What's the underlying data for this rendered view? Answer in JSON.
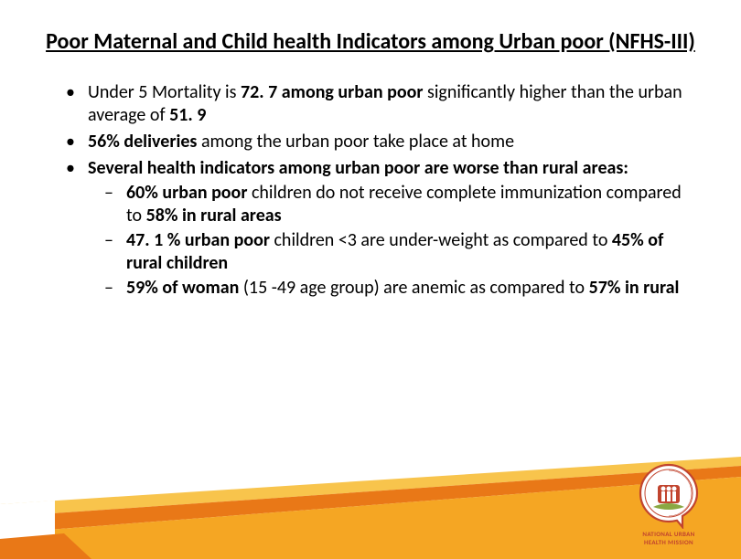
{
  "title": "Poor Maternal and Child health Indicators  among Urban poor (NFHS-III)",
  "bullets": [
    {
      "html": "Under 5 Mortality is <span class='b'>72. 7 among urban poor</span> significantly higher than the urban average of <span class='b'>51. 9</span>"
    },
    {
      "html": "<span class='b'>56% deliveries</span> among the urban poor take place at home"
    },
    {
      "html": "<span class='b'>Several health indicators among urban poor are worse than rural areas:</span>",
      "sub": [
        "<span class='b'>60% urban poor</span> children do not receive complete immunization compared to <span class='b'>58% in rural areas</span>",
        "<span class='b'>47. 1 % urban poor</span> children &lt;3 are under-weight as compared to <span class='b'>45% of rural children</span>",
        "<span class='b'>59% of woman</span> (15 -49 age group) are anemic as compared to <span class='b'>57% in rural</span>"
      ]
    }
  ],
  "logo": {
    "line1": "NATIONAL URBAN",
    "line2": "HEALTH MISSION"
  },
  "colors": {
    "orange_dark": "#e97817",
    "orange_light": "#f5a623",
    "yellow": "#f8c44c",
    "logo_red": "#c1442e",
    "logo_green": "#8aa843"
  }
}
